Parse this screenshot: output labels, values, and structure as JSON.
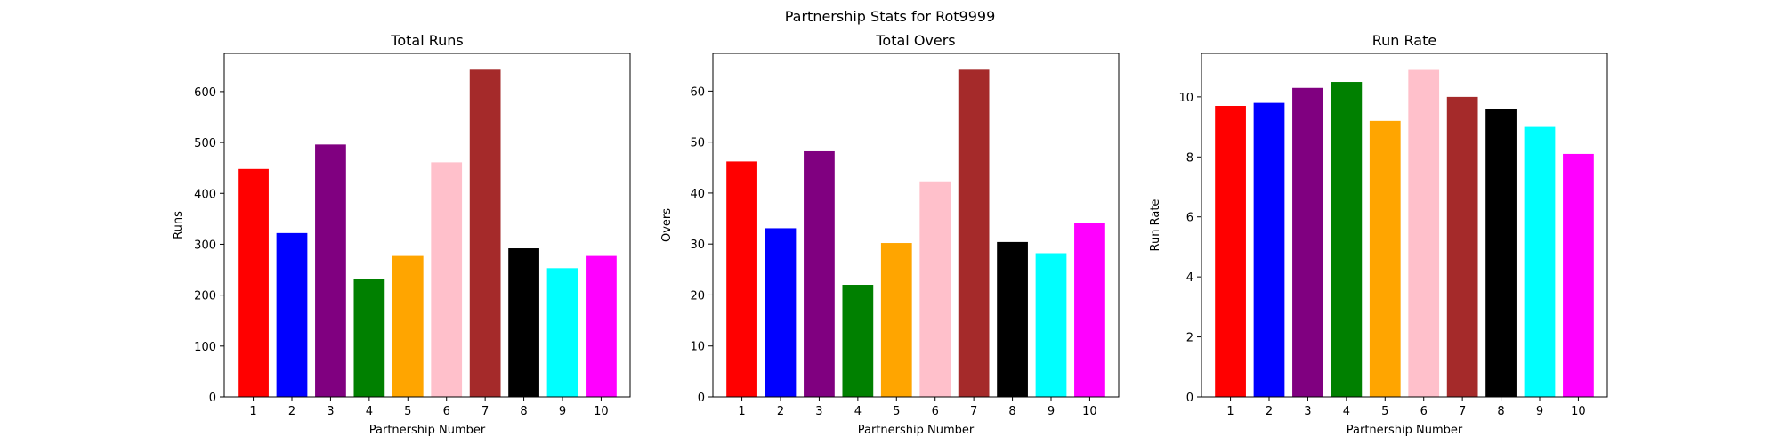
{
  "figure": {
    "suptitle": "Partnership Stats for Rot9999"
  },
  "chart_data": [
    {
      "type": "bar",
      "title": "Total Runs",
      "xlabel": "Partnership Number",
      "ylabel": "Runs",
      "categories": [
        "1",
        "2",
        "3",
        "4",
        "5",
        "6",
        "7",
        "8",
        "9",
        "10"
      ],
      "values": [
        448,
        322,
        496,
        231,
        277,
        461,
        643,
        292,
        253,
        277
      ],
      "ylim": [
        0,
        675
      ],
      "yticks": [
        0,
        100,
        200,
        300,
        400,
        500,
        600
      ],
      "colors": [
        "#ff0000",
        "#0000ff",
        "#800080",
        "#008000",
        "#ffa500",
        "#ffc0cb",
        "#a52a2a",
        "#000000",
        "#00ffff",
        "#ff00ff"
      ],
      "grid": false
    },
    {
      "type": "bar",
      "title": "Total Overs",
      "xlabel": "Partnership Number",
      "ylabel": "Overs",
      "categories": [
        "1",
        "2",
        "3",
        "4",
        "5",
        "6",
        "7",
        "8",
        "9",
        "10"
      ],
      "values": [
        46.2,
        33.1,
        48.2,
        22,
        30.2,
        42.3,
        64.2,
        30.4,
        28.2,
        34.1
      ],
      "ylim": [
        0,
        67.4
      ],
      "yticks": [
        0,
        10,
        20,
        30,
        40,
        50,
        60
      ],
      "colors": [
        "#ff0000",
        "#0000ff",
        "#800080",
        "#008000",
        "#ffa500",
        "#ffc0cb",
        "#a52a2a",
        "#000000",
        "#00ffff",
        "#ff00ff"
      ],
      "grid": false
    },
    {
      "type": "bar",
      "title": "Run Rate",
      "xlabel": "Partnership Number",
      "ylabel": "Run Rate",
      "categories": [
        "1",
        "2",
        "3",
        "4",
        "5",
        "6",
        "7",
        "8",
        "9",
        "10"
      ],
      "values": [
        9.7,
        9.8,
        10.3,
        10.5,
        9.2,
        10.9,
        10.0,
        9.6,
        9.0,
        8.1
      ],
      "ylim": [
        0,
        11.45
      ],
      "yticks": [
        0,
        2,
        4,
        6,
        8,
        10
      ],
      "colors": [
        "#ff0000",
        "#0000ff",
        "#800080",
        "#008000",
        "#ffa500",
        "#ffc0cb",
        "#a52a2a",
        "#000000",
        "#00ffff",
        "#ff00ff"
      ],
      "grid": false
    }
  ]
}
